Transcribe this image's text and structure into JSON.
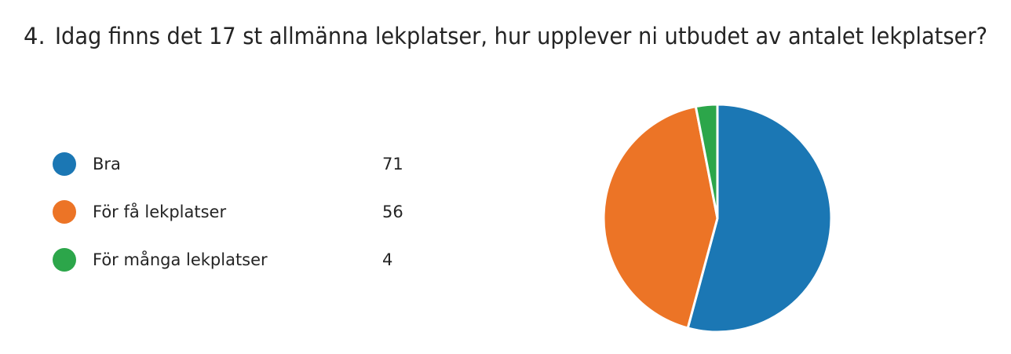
{
  "chart_data": {
    "type": "pie",
    "question_number": "4.",
    "title": "Idag finns det 17 st allmänna lekplatser, hur upplever ni utbudet av antalet lekplatser?",
    "categories": [
      "Bra",
      "För få lekplatser",
      "För många lekplatser"
    ],
    "values": [
      71,
      56,
      4
    ],
    "colors": [
      "#1b77b4",
      "#ec7426",
      "#2ca64a"
    ]
  }
}
